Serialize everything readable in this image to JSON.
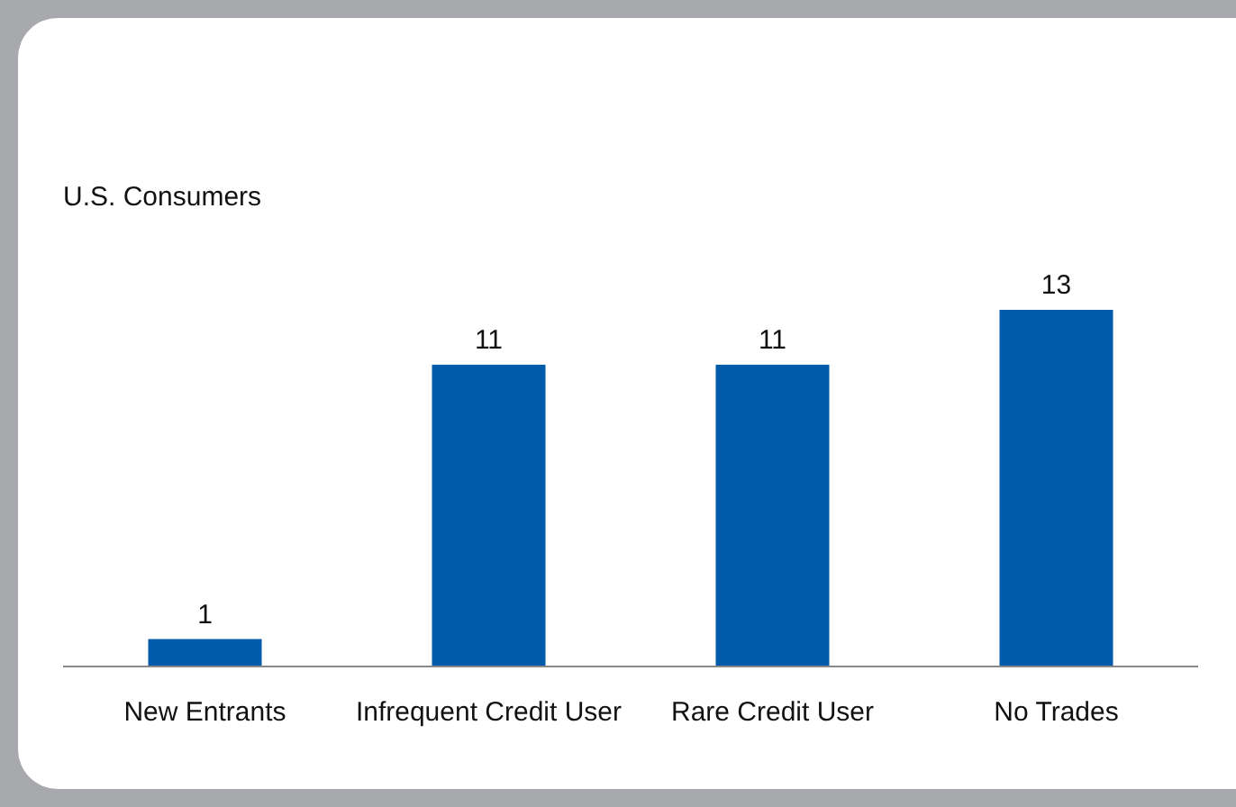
{
  "chart_data": {
    "type": "bar",
    "title": "U.S. Consumers",
    "categories": [
      "New Entrants",
      "Infrequent Credit User",
      "Rare Credit User",
      "No Trades"
    ],
    "values": [
      1,
      11,
      11,
      13
    ],
    "color": "#005bab",
    "data_labels": true,
    "grid": false
  }
}
